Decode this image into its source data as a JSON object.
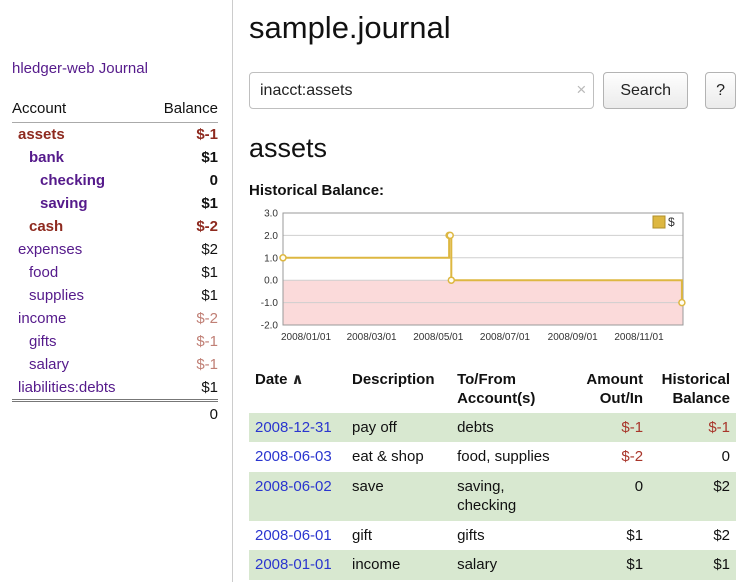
{
  "colors": {
    "link_purple": "#551a8b",
    "date_link": "#2a35cf",
    "negative_strong": "#8e2a1f",
    "negative_muted": "#c07f75",
    "row_green": "#d8e8d0",
    "chart_line": "#ddb741",
    "chart_negative_fill": "#fbdada"
  },
  "sidebar": {
    "app_title": "hledger-web",
    "nav_journal": "Journal",
    "accounts_table": {
      "col_account": "Account",
      "col_balance": "Balance",
      "rows": [
        {
          "name": "assets",
          "balance": "$-1",
          "indent": 0,
          "bold": true,
          "name_negative": true,
          "balance_negative": true
        },
        {
          "name": "bank",
          "balance": "$1",
          "indent": 1,
          "bold": true,
          "name_negative": false,
          "balance_negative": false
        },
        {
          "name": "checking",
          "balance": "0",
          "indent": 2,
          "bold": true,
          "name_negative": false,
          "balance_negative": false
        },
        {
          "name": "saving",
          "balance": "$1",
          "indent": 2,
          "bold": true,
          "name_negative": false,
          "balance_negative": false
        },
        {
          "name": "cash",
          "balance": "$-2",
          "indent": 1,
          "bold": true,
          "name_negative": true,
          "balance_negative": true
        },
        {
          "name": "expenses",
          "balance": "$2",
          "indent": 0,
          "bold": false,
          "name_negative": false,
          "balance_negative": false
        },
        {
          "name": "food",
          "balance": "$1",
          "indent": 1,
          "bold": false,
          "name_negative": false,
          "balance_negative": false
        },
        {
          "name": "supplies",
          "balance": "$1",
          "indent": 1,
          "bold": false,
          "name_negative": false,
          "balance_negative": false
        },
        {
          "name": "income",
          "balance": "$-2",
          "indent": 0,
          "bold": false,
          "name_negative": false,
          "balance_negative": true
        },
        {
          "name": "gifts",
          "balance": "$-1",
          "indent": 1,
          "bold": false,
          "name_negative": false,
          "balance_negative": true
        },
        {
          "name": "salary",
          "balance": "$-1",
          "indent": 1,
          "bold": false,
          "name_negative": false,
          "balance_negative": true
        },
        {
          "name": "liabilities:debts",
          "balance": "$1",
          "indent": 0,
          "bold": false,
          "name_negative": false,
          "balance_negative": false
        }
      ],
      "total": "0"
    }
  },
  "main": {
    "title": "sample.journal",
    "search": {
      "value": "inacct:assets",
      "clear_icon": "×",
      "search_button": "Search",
      "help_button": "?"
    },
    "account_heading": "assets",
    "chart_heading": "Historical Balance:"
  },
  "chart_data": {
    "type": "line",
    "title": "Historical Balance",
    "step": true,
    "ylim": [
      -2,
      3
    ],
    "yticks": [
      "3.0",
      "2.0",
      "1.0",
      "0.0",
      "-1.0",
      "-2.0"
    ],
    "xlim_days": [
      0,
      366
    ],
    "xticks": [
      {
        "label": "2008/01/01",
        "day": 0
      },
      {
        "label": "2008/03/01",
        "day": 60
      },
      {
        "label": "2008/05/01",
        "day": 121
      },
      {
        "label": "2008/07/01",
        "day": 182
      },
      {
        "label": "2008/09/01",
        "day": 244
      },
      {
        "label": "2008/11/01",
        "day": 305
      }
    ],
    "series": [
      {
        "name": "$",
        "points": [
          {
            "date": "2008-01-01",
            "day": 0,
            "value": 1
          },
          {
            "date": "2008-06-01",
            "day": 152,
            "value": 2
          },
          {
            "date": "2008-06-02",
            "day": 153,
            "value": 2
          },
          {
            "date": "2008-06-03",
            "day": 154,
            "value": 0
          },
          {
            "date": "2008-12-31",
            "day": 365,
            "value": -1
          }
        ]
      }
    ],
    "legend": [
      {
        "label": "$",
        "position": "top-right"
      }
    ],
    "grid": true
  },
  "register_table": {
    "headers": {
      "date": "Date",
      "sort_indicator": "∧",
      "description": "Description",
      "accounts": "To/From Account(s)",
      "amount": "Amount Out/In",
      "balance": "Historical Balance"
    },
    "rows": [
      {
        "date": "2008-12-31",
        "description": "pay off",
        "accounts": "debts",
        "amount": "$-1",
        "amount_negative": true,
        "balance": "$-1",
        "balance_negative": true,
        "shaded": true
      },
      {
        "date": "2008-06-03",
        "description": "eat & shop",
        "accounts": "food, supplies",
        "amount": "$-2",
        "amount_negative": true,
        "balance": "0",
        "balance_negative": false,
        "shaded": false
      },
      {
        "date": "2008-06-02",
        "description": "save",
        "accounts": "saving, checking",
        "amount": "0",
        "amount_negative": false,
        "balance": "$2",
        "balance_negative": false,
        "shaded": true
      },
      {
        "date": "2008-06-01",
        "description": "gift",
        "accounts": "gifts",
        "amount": "$1",
        "amount_negative": false,
        "balance": "$2",
        "balance_negative": false,
        "shaded": false
      },
      {
        "date": "2008-01-01",
        "description": "income",
        "accounts": "salary",
        "amount": "$1",
        "amount_negative": false,
        "balance": "$1",
        "balance_negative": false,
        "shaded": true
      }
    ]
  }
}
